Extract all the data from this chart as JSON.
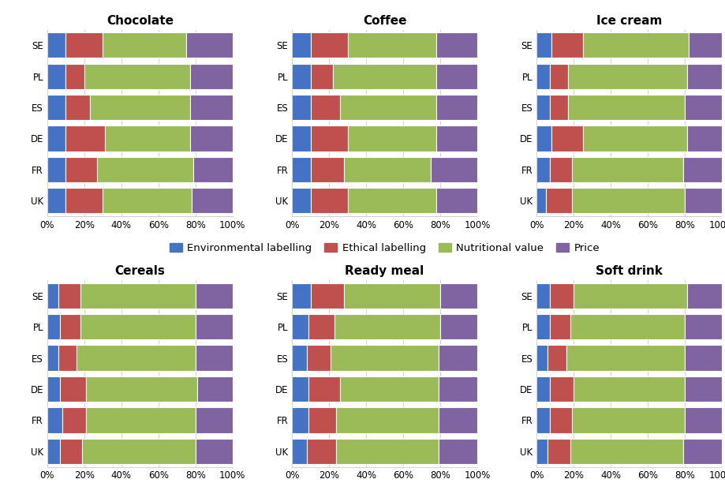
{
  "categories": [
    "SE",
    "PL",
    "ES",
    "DE",
    "FR",
    "UK"
  ],
  "products": [
    "Chocolate",
    "Coffee",
    "Ice cream",
    "Cereals",
    "Ready meal",
    "Soft drink"
  ],
  "series": [
    "Environmental labelling",
    "Ethical labelling",
    "Nutritional value",
    "Price"
  ],
  "colors": [
    "#4472C4",
    "#C0504D",
    "#9BBB59",
    "#8064A2"
  ],
  "data": {
    "Chocolate": {
      "SE": [
        10,
        20,
        45,
        25
      ],
      "PL": [
        10,
        10,
        57,
        23
      ],
      "ES": [
        10,
        13,
        54,
        23
      ],
      "DE": [
        10,
        21,
        46,
        23
      ],
      "FR": [
        10,
        17,
        52,
        21
      ],
      "UK": [
        10,
        20,
        48,
        22
      ]
    },
    "Coffee": {
      "SE": [
        10,
        20,
        48,
        22
      ],
      "PL": [
        10,
        12,
        56,
        22
      ],
      "ES": [
        10,
        16,
        52,
        22
      ],
      "DE": [
        10,
        20,
        48,
        22
      ],
      "FR": [
        10,
        18,
        47,
        25
      ],
      "UK": [
        10,
        20,
        48,
        22
      ]
    },
    "Ice cream": {
      "SE": [
        8,
        17,
        57,
        18
      ],
      "PL": [
        7,
        10,
        64,
        19
      ],
      "ES": [
        7,
        10,
        63,
        20
      ],
      "DE": [
        8,
        17,
        56,
        19
      ],
      "FR": [
        7,
        12,
        60,
        21
      ],
      "UK": [
        5,
        14,
        61,
        20
      ]
    },
    "Cereals": {
      "SE": [
        6,
        12,
        62,
        20
      ],
      "PL": [
        7,
        11,
        62,
        20
      ],
      "ES": [
        6,
        10,
        64,
        20
      ],
      "DE": [
        7,
        14,
        60,
        19
      ],
      "FR": [
        8,
        13,
        59,
        20
      ],
      "UK": [
        7,
        12,
        61,
        20
      ]
    },
    "Ready meal": {
      "SE": [
        10,
        18,
        52,
        20
      ],
      "PL": [
        9,
        14,
        57,
        20
      ],
      "ES": [
        8,
        13,
        58,
        21
      ],
      "DE": [
        9,
        17,
        53,
        21
      ],
      "FR": [
        9,
        15,
        55,
        21
      ],
      "UK": [
        8,
        16,
        55,
        21
      ]
    },
    "Soft drink": {
      "SE": [
        7,
        13,
        61,
        19
      ],
      "PL": [
        7,
        11,
        62,
        20
      ],
      "ES": [
        6,
        10,
        64,
        20
      ],
      "DE": [
        7,
        13,
        60,
        20
      ],
      "FR": [
        7,
        12,
        61,
        20
      ],
      "UK": [
        6,
        12,
        61,
        21
      ]
    }
  },
  "background_color": "#FFFFFF",
  "title_fontsize": 11,
  "tick_fontsize": 8.5,
  "label_fontsize": 9
}
